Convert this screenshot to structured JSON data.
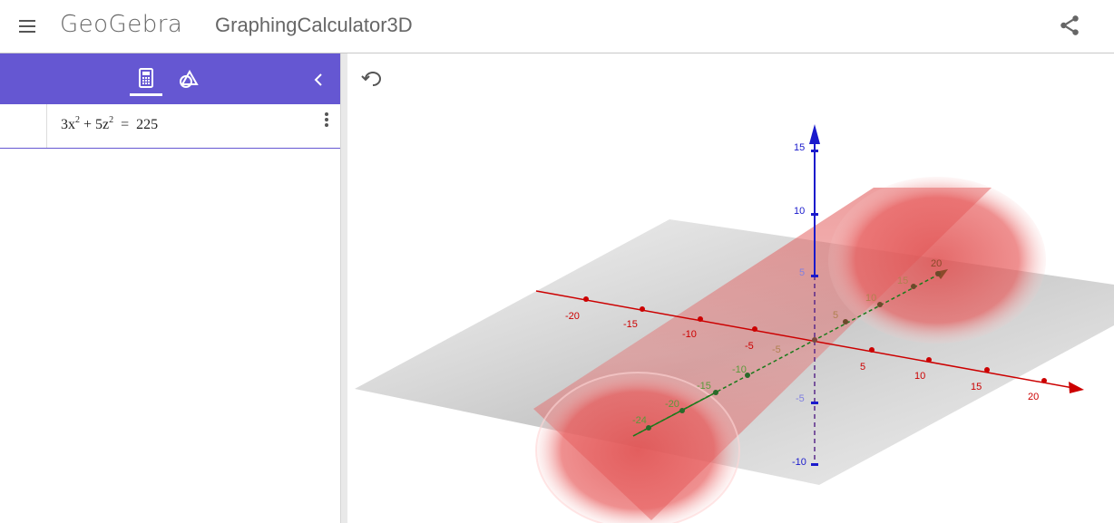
{
  "header": {
    "logo": "GeoGebra",
    "app_title": "GraphingCalculator3D",
    "menu_icon": "hamburger-menu-icon",
    "share_icon": "share-icon"
  },
  "sidebar": {
    "accent_color": "#6557d2",
    "tabs": [
      {
        "icon": "calculator-icon",
        "active": true
      },
      {
        "icon": "tools-icon",
        "active": false
      }
    ],
    "collapse_icon": "chevron-left-icon"
  },
  "algebra": {
    "input": {
      "c1": "3x",
      "e1": "2",
      "op": "+",
      "c2": "5z",
      "e2": "2",
      "eq": "=",
      "rhs": "225"
    },
    "menu_icon": "more-vert-icon"
  },
  "graphics": {
    "undo_icon": "undo-icon",
    "x_axis_ticks": [
      "-20",
      "-15",
      "-10",
      "-5",
      "5",
      "10",
      "15",
      "20"
    ],
    "y_axis_ticks": [
      "-24",
      "-20",
      "-15",
      "-10",
      "-5",
      "5",
      "10",
      "15",
      "20"
    ],
    "z_axis_ticks": [
      "15",
      "10",
      "5",
      "-5",
      "-10"
    ],
    "colors": {
      "x_axis": "#cc0000",
      "y_axis": "#1b7a1b",
      "z_axis": "#1a1acc",
      "surface": "#e05050"
    }
  }
}
